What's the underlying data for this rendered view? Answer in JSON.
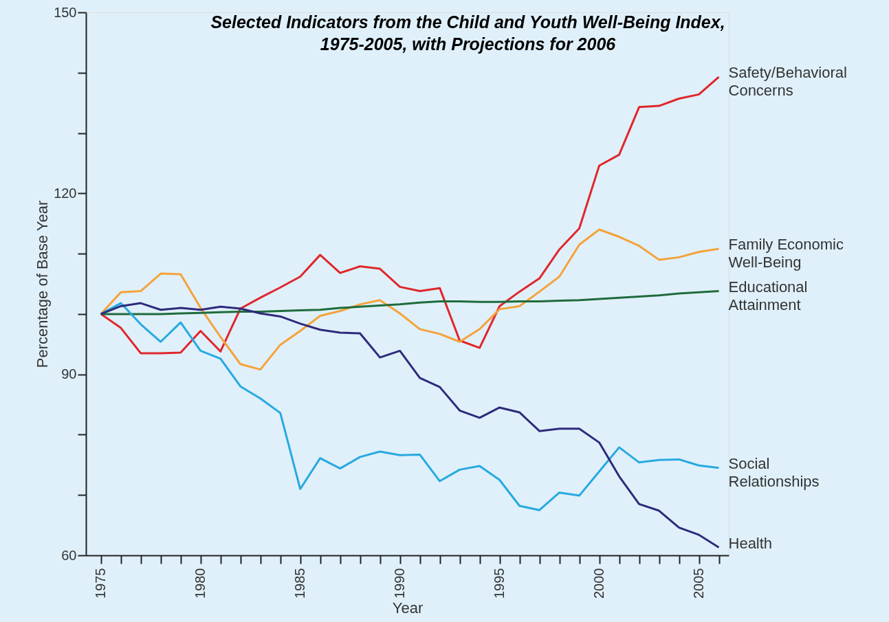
{
  "chart_data": {
    "type": "line",
    "title": [
      "Selected Indicators from the Child and Youth Well-Being Index,",
      "1975-2005, with Projections for 2006"
    ],
    "xlabel": "Year",
    "ylabel": "Percentage of Base Year",
    "x": [
      1975,
      1976,
      1977,
      1978,
      1979,
      1980,
      1981,
      1982,
      1983,
      1984,
      1985,
      1986,
      1987,
      1988,
      1989,
      1990,
      1991,
      1992,
      1993,
      1994,
      1995,
      1996,
      1997,
      1998,
      1999,
      2000,
      2001,
      2002,
      2003,
      2004,
      2005,
      2006
    ],
    "series": [
      {
        "name": "Safety/Behavioral Concerns",
        "color": "#e0262b",
        "values": [
          100,
          97.7,
          93.5,
          93.5,
          93.6,
          97.2,
          93.8,
          100.9,
          102.7,
          104.4,
          106.2,
          109.8,
          106.8,
          107.9,
          107.5,
          104.5,
          103.8,
          104.3,
          95.6,
          94.4,
          101.3,
          103.7,
          105.9,
          110.7,
          114.2,
          124.6,
          126.4,
          134.3,
          134.5,
          135.7,
          136.4,
          139.3
        ]
      },
      {
        "name": "Family Economic Well-Being",
        "color": "#f5a23a",
        "values": [
          100,
          103.6,
          103.8,
          106.7,
          106.6,
          101,
          96.2,
          91.7,
          90.8,
          94.9,
          97.2,
          99.7,
          100.5,
          101.6,
          102.3,
          100.1,
          97.5,
          96.7,
          95.4,
          97.5,
          100.8,
          101.3,
          103.7,
          106.2,
          111.5,
          114,
          112.8,
          111.3,
          109,
          109.4,
          110.3,
          110.8
        ]
      },
      {
        "name": "Educational Attainment",
        "color": "#1e6b3c",
        "values": [
          100,
          100,
          100,
          100,
          100.1,
          100.2,
          100.3,
          100.4,
          100.4,
          100.5,
          100.6,
          100.7,
          101,
          101.2,
          101.4,
          101.6,
          101.9,
          102.1,
          102.1,
          102,
          102,
          102.1,
          102.1,
          102.2,
          102.3,
          102.5,
          102.7,
          102.9,
          103.1,
          103.4,
          103.6,
          103.8
        ]
      },
      {
        "name": "Social Relationships",
        "color": "#27a9e1",
        "values": [
          100,
          101.8,
          98.3,
          95.4,
          98.6,
          93.9,
          92.6,
          88,
          86,
          83.6,
          71,
          76.1,
          74.4,
          76.3,
          77.2,
          76.6,
          76.7,
          72.3,
          74.2,
          74.8,
          72.5,
          68.2,
          67.5,
          70.4,
          69.9,
          73.9,
          77.9,
          75.4,
          75.8,
          75.9,
          74.9,
          74.5
        ]
      },
      {
        "name": "Health",
        "color": "#2e2a7a",
        "values": [
          100,
          101.3,
          101.8,
          100.7,
          101,
          100.7,
          101.2,
          100.9,
          100.1,
          99.6,
          98.4,
          97.4,
          96.9,
          96.8,
          92.8,
          93.9,
          89.4,
          87.9,
          84,
          82.8,
          84.5,
          83.7,
          80.6,
          81,
          81,
          78.7,
          73.1,
          68.5,
          67.4,
          64.6,
          63.4,
          61.3
        ]
      }
    ],
    "xlim": [
      1974.25,
      2006.5
    ],
    "xticks": [
      1975,
      {
        "value": 1976,
        "label": null
      },
      {
        "value": 1977,
        "label": null
      },
      {
        "value": 1978,
        "label": null
      },
      {
        "value": 1979,
        "label": null
      },
      1980,
      {
        "value": 1981,
        "label": null
      },
      {
        "value": 1982,
        "label": null
      },
      {
        "value": 1983,
        "label": null
      },
      {
        "value": 1984,
        "label": null
      },
      1985,
      {
        "value": 1986,
        "label": null
      },
      {
        "value": 1987,
        "label": null
      },
      {
        "value": 1988,
        "label": null
      },
      {
        "value": 1989,
        "label": null
      },
      1990,
      {
        "value": 1991,
        "label": null
      },
      {
        "value": 1992,
        "label": null
      },
      {
        "value": 1993,
        "label": null
      },
      {
        "value": 1994,
        "label": null
      },
      1995,
      {
        "value": 1996,
        "label": null
      },
      {
        "value": 1997,
        "label": null
      },
      {
        "value": 1998,
        "label": null
      },
      {
        "value": 1999,
        "label": null
      },
      2000,
      {
        "value": 2001,
        "label": null
      },
      {
        "value": 2002,
        "label": null
      },
      {
        "value": 2003,
        "label": null
      },
      {
        "value": 2004,
        "label": null
      },
      2005,
      {
        "value": 2006,
        "label": null
      }
    ],
    "ylim": [
      60,
      150
    ],
    "yticks": [
      60,
      {
        "value": 70,
        "label": null
      },
      {
        "value": 80,
        "label": null
      },
      90,
      {
        "value": 100,
        "label": null
      },
      {
        "value": 110,
        "label": null
      },
      120,
      {
        "value": 130,
        "label": null
      },
      {
        "value": 140,
        "label": null
      },
      150
    ],
    "grid": false,
    "legend": false,
    "marker": "none",
    "line_style": "solid"
  }
}
